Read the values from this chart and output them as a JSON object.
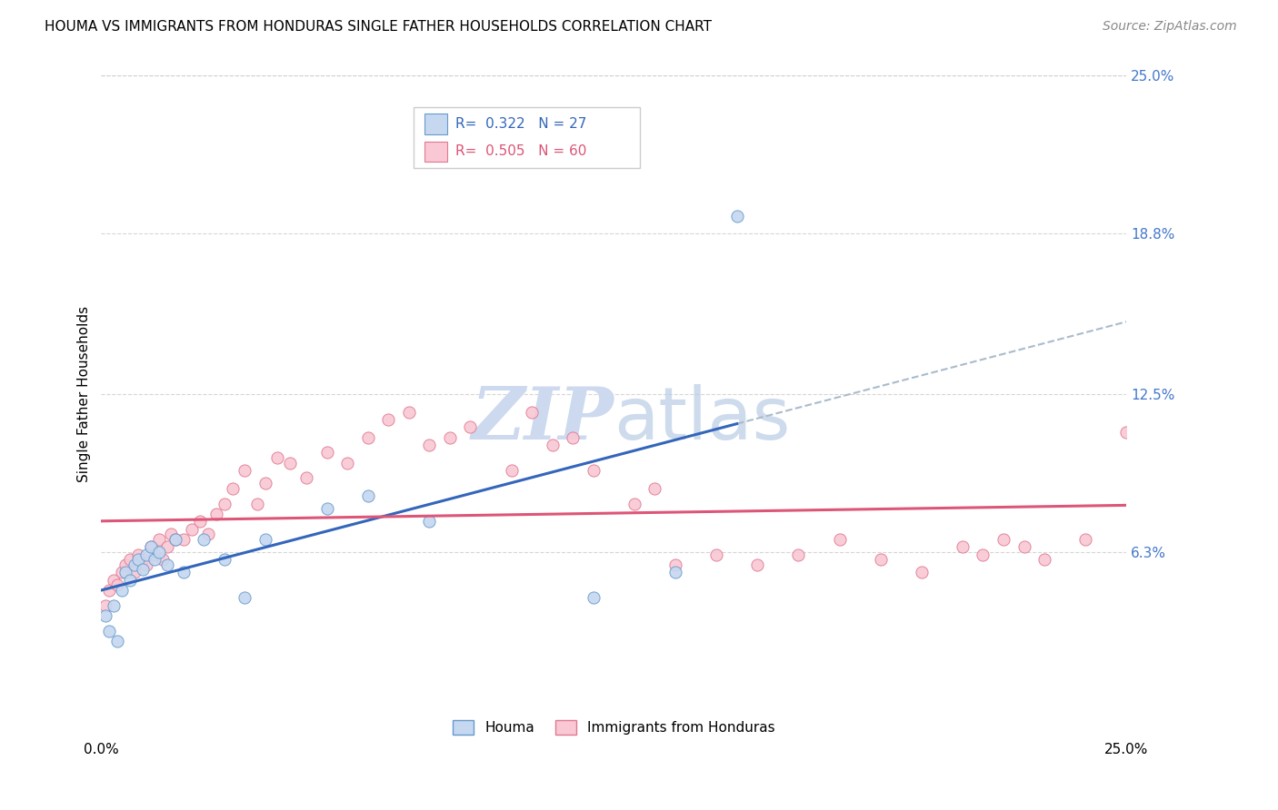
{
  "title": "HOUMA VS IMMIGRANTS FROM HONDURAS SINGLE FATHER HOUSEHOLDS CORRELATION CHART",
  "source": "Source: ZipAtlas.com",
  "ylabel": "Single Father Households",
  "xlim": [
    0.0,
    0.25
  ],
  "ylim": [
    0.0,
    0.25
  ],
  "ytick_labels_right": [
    "25.0%",
    "18.8%",
    "12.5%",
    "6.3%"
  ],
  "ytick_positions_right": [
    0.25,
    0.188,
    0.125,
    0.063
  ],
  "grid_color": "#cccccc",
  "background_color": "#ffffff",
  "houma_color": "#c5d8f0",
  "houma_edge_color": "#6699cc",
  "honduras_color": "#f9c8d4",
  "honduras_edge_color": "#e07890",
  "houma_line_color": "#3366bb",
  "honduras_line_color": "#dd5577",
  "dash_color": "#aabbcc",
  "legend_R_houma": "0.322",
  "legend_N_houma": "27",
  "legend_R_honduras": "0.505",
  "legend_N_honduras": "60",
  "watermark_color": "#ccd9ee",
  "houma_x": [
    0.001,
    0.002,
    0.003,
    0.004,
    0.005,
    0.006,
    0.007,
    0.008,
    0.009,
    0.01,
    0.011,
    0.012,
    0.013,
    0.014,
    0.016,
    0.018,
    0.02,
    0.025,
    0.03,
    0.035,
    0.04,
    0.055,
    0.065,
    0.08,
    0.12,
    0.14,
    0.155
  ],
  "houma_y": [
    0.038,
    0.032,
    0.042,
    0.028,
    0.048,
    0.055,
    0.052,
    0.058,
    0.06,
    0.056,
    0.062,
    0.065,
    0.06,
    0.063,
    0.058,
    0.068,
    0.055,
    0.068,
    0.06,
    0.045,
    0.068,
    0.08,
    0.085,
    0.075,
    0.045,
    0.055,
    0.195
  ],
  "honduras_x": [
    0.001,
    0.002,
    0.003,
    0.004,
    0.005,
    0.006,
    0.007,
    0.008,
    0.009,
    0.01,
    0.011,
    0.012,
    0.013,
    0.014,
    0.015,
    0.016,
    0.017,
    0.018,
    0.02,
    0.022,
    0.024,
    0.026,
    0.028,
    0.03,
    0.032,
    0.035,
    0.038,
    0.04,
    0.043,
    0.046,
    0.05,
    0.055,
    0.06,
    0.065,
    0.07,
    0.075,
    0.08,
    0.085,
    0.09,
    0.1,
    0.105,
    0.11,
    0.115,
    0.12,
    0.13,
    0.135,
    0.14,
    0.15,
    0.16,
    0.17,
    0.18,
    0.19,
    0.2,
    0.21,
    0.215,
    0.22,
    0.225,
    0.23,
    0.24,
    0.25
  ],
  "honduras_y": [
    0.042,
    0.048,
    0.052,
    0.05,
    0.055,
    0.058,
    0.06,
    0.055,
    0.062,
    0.06,
    0.058,
    0.065,
    0.062,
    0.068,
    0.06,
    0.065,
    0.07,
    0.068,
    0.068,
    0.072,
    0.075,
    0.07,
    0.078,
    0.082,
    0.088,
    0.095,
    0.082,
    0.09,
    0.1,
    0.098,
    0.092,
    0.102,
    0.098,
    0.108,
    0.115,
    0.118,
    0.105,
    0.108,
    0.112,
    0.095,
    0.118,
    0.105,
    0.108,
    0.095,
    0.082,
    0.088,
    0.058,
    0.062,
    0.058,
    0.062,
    0.068,
    0.06,
    0.055,
    0.065,
    0.062,
    0.068,
    0.065,
    0.06,
    0.068,
    0.11
  ]
}
